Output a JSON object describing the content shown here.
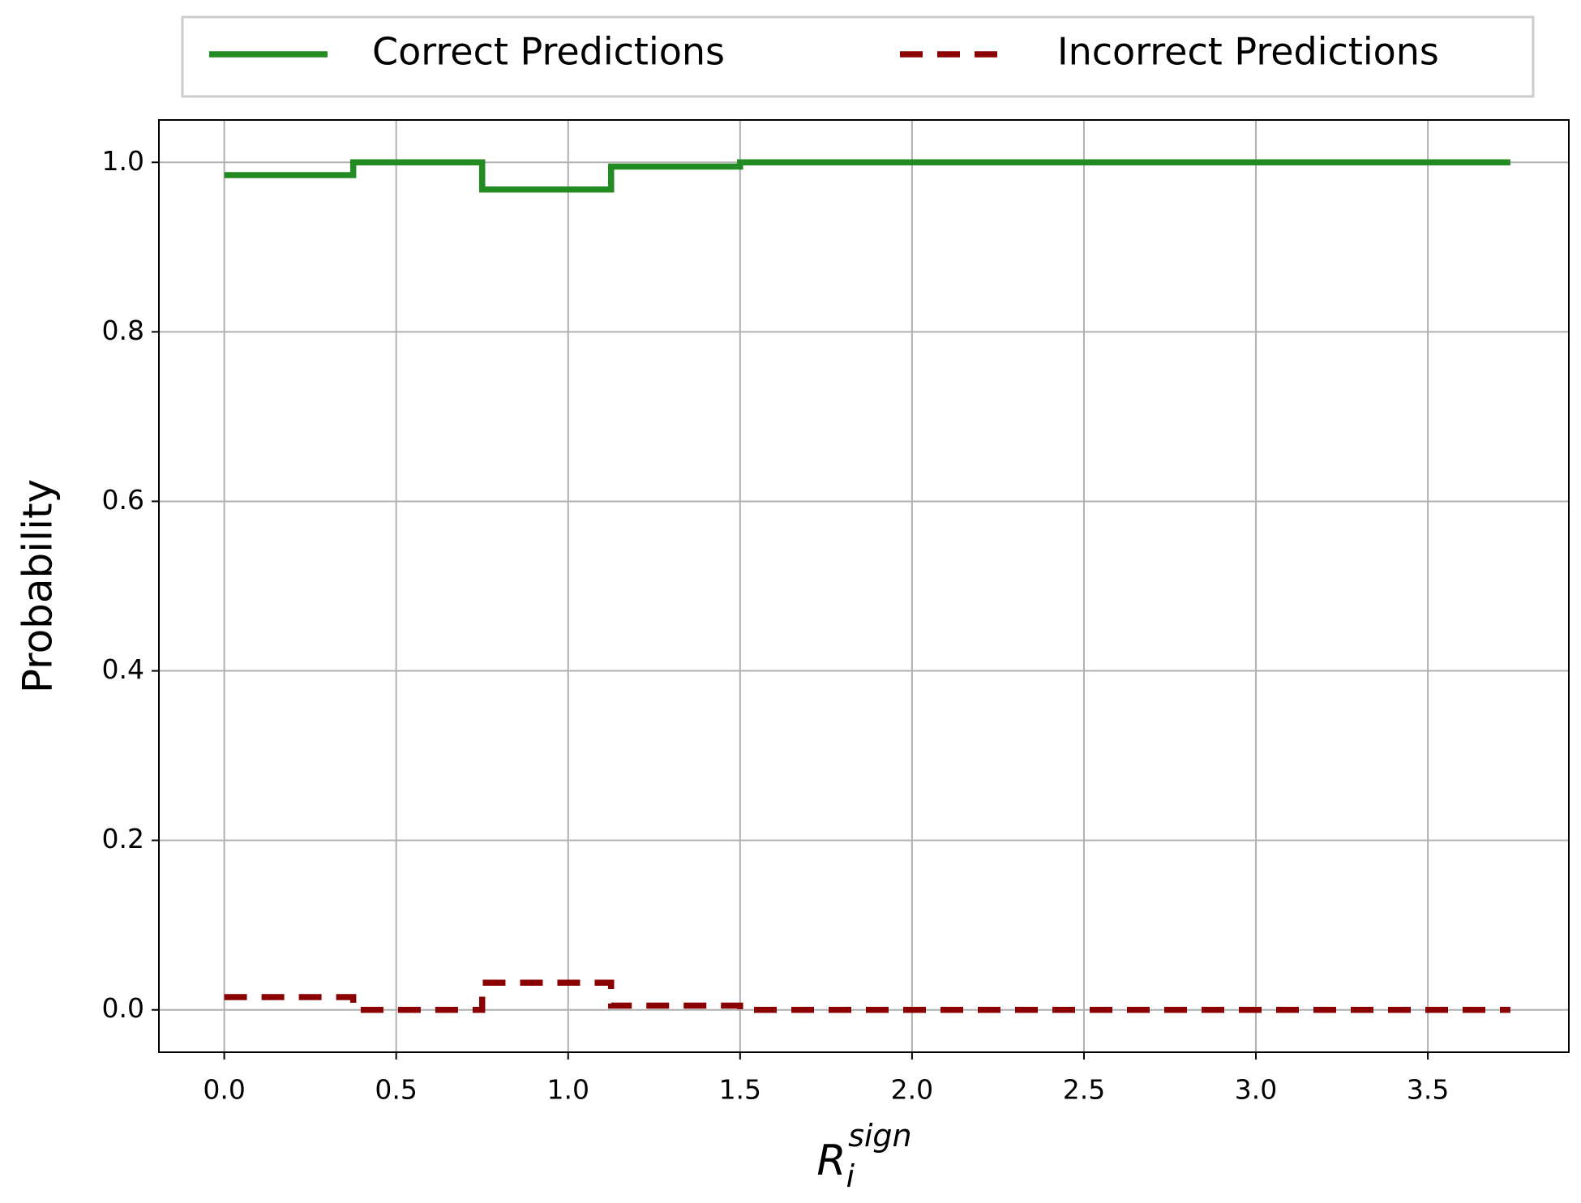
{
  "chart_data": {
    "type": "line",
    "drawstyle": "steps-post",
    "ylabel": "Probability",
    "xlabel": {
      "base": "R",
      "sub": "i",
      "sup": "sign"
    },
    "x": [
      0,
      0.375,
      0.75,
      1.125,
      1.5,
      3.74
    ],
    "series": [
      {
        "name": "Correct Predictions",
        "color": "#228b22",
        "dash": "solid",
        "values": [
          0.985,
          1.0,
          0.968,
          0.995,
          1.0,
          1.0
        ]
      },
      {
        "name": "Incorrect Predictions",
        "color": "#8b0000",
        "dash": "dashed",
        "values": [
          0.015,
          0.0,
          0.032,
          0.005,
          0.0,
          0.0
        ]
      }
    ],
    "xlim": [
      -0.19,
      3.91
    ],
    "ylim": [
      -0.05,
      1.05
    ],
    "xticks": [
      {
        "value": 0,
        "label": "0.0"
      },
      0.5,
      {
        "value": 1,
        "label": "1.0"
      },
      1.5,
      {
        "value": 2,
        "label": "2.0"
      },
      2.5,
      {
        "value": 3,
        "label": "3.0"
      },
      3.5
    ],
    "yticks": [
      {
        "value": 0,
        "label": "0.0"
      },
      0.2,
      0.4,
      0.6,
      0.8,
      {
        "value": 1,
        "label": "1.0"
      }
    ],
    "grid": true,
    "legend": "upper center outside"
  }
}
